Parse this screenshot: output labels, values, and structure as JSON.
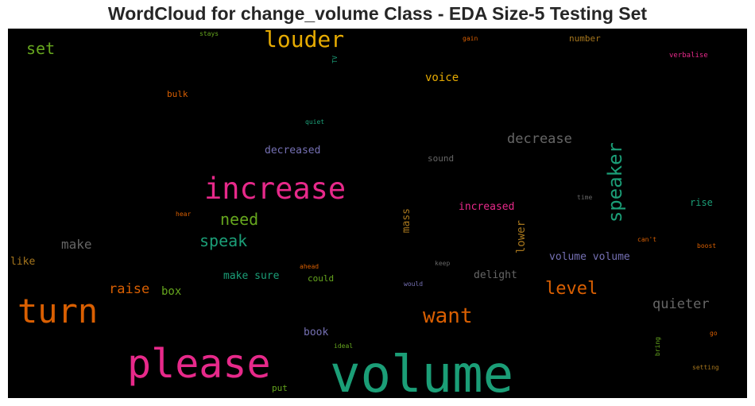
{
  "chart_data": {
    "type": "wordcloud",
    "title": "WordCloud for change_volume Class - EDA Size-5 Testing Set",
    "words": [
      {
        "text": "volume",
        "color": "#1b9e77"
      },
      {
        "text": "please",
        "color": "#e7298a"
      },
      {
        "text": "turn",
        "color": "#d95f02"
      },
      {
        "text": "increase",
        "color": "#e7298a"
      },
      {
        "text": "louder",
        "color": "#e6ab02"
      },
      {
        "text": "speaker",
        "color": "#1b9e77"
      },
      {
        "text": "want",
        "color": "#d95f02"
      },
      {
        "text": "level",
        "color": "#d95f02"
      },
      {
        "text": "need",
        "color": "#66a61e"
      },
      {
        "text": "speak",
        "color": "#1b9e77"
      },
      {
        "text": "set",
        "color": "#66a61e"
      },
      {
        "text": "decrease",
        "color": "#666666"
      },
      {
        "text": "quieter",
        "color": "#666666"
      },
      {
        "text": "raise",
        "color": "#d95f02"
      },
      {
        "text": "make",
        "color": "#666666"
      },
      {
        "text": "voice",
        "color": "#e6ab02"
      },
      {
        "text": "lower",
        "color": "#a6761d"
      },
      {
        "text": "box",
        "color": "#66a61e"
      },
      {
        "text": "decreased",
        "color": "#7570b3"
      },
      {
        "text": "increased",
        "color": "#e7298a"
      },
      {
        "text": "volume volume",
        "color": "#7570b3"
      },
      {
        "text": "make sure",
        "color": "#1b9e77"
      },
      {
        "text": "delight",
        "color": "#666666"
      },
      {
        "text": "like",
        "color": "#a6761d"
      },
      {
        "text": "mass",
        "color": "#a6761d"
      },
      {
        "text": "book",
        "color": "#7570b3"
      },
      {
        "text": "rise",
        "color": "#1b9e77"
      },
      {
        "text": "sound",
        "color": "#666666"
      },
      {
        "text": "bulk",
        "color": "#d95f02"
      },
      {
        "text": "number",
        "color": "#a6761d"
      },
      {
        "text": "could",
        "color": "#66a61e"
      },
      {
        "text": "put",
        "color": "#66a61e"
      },
      {
        "text": "verbalise",
        "color": "#e7298a"
      },
      {
        "text": "quiet",
        "color": "#1b9e77"
      },
      {
        "text": "gain",
        "color": "#d95f02"
      },
      {
        "text": "stays",
        "color": "#66a61e"
      },
      {
        "text": "TV",
        "color": "#1b9e77"
      },
      {
        "text": "hear",
        "color": "#d95f02"
      },
      {
        "text": "ahead",
        "color": "#d95f02"
      },
      {
        "text": "keep",
        "color": "#666666"
      },
      {
        "text": "would",
        "color": "#7570b3"
      },
      {
        "text": "time",
        "color": "#666666"
      },
      {
        "text": "can't",
        "color": "#d95f02"
      },
      {
        "text": "boost",
        "color": "#d95f02"
      },
      {
        "text": "ideal",
        "color": "#66a61e"
      },
      {
        "text": "bring",
        "color": "#66a61e"
      },
      {
        "text": "go",
        "color": "#d95f02"
      },
      {
        "text": "setting",
        "color": "#a6761d"
      }
    ]
  }
}
